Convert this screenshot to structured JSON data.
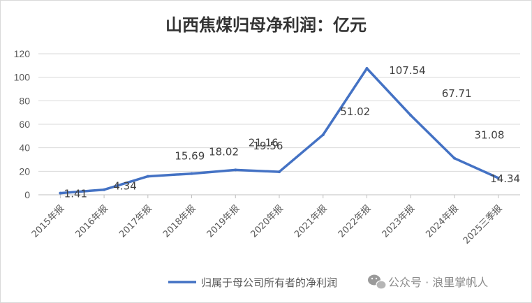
{
  "chart_data": {
    "type": "line",
    "title": "山西焦煤归母净利润：亿元",
    "categories": [
      "2015年报",
      "2016年报",
      "2017年报",
      "2018年报",
      "2019年报",
      "2020年报",
      "2021年报",
      "2022年报",
      "2023年报",
      "2024年报",
      "2025三季报"
    ],
    "series": [
      {
        "name": "归属于母公司所有者的净利润",
        "values": [
          1.41,
          4.34,
          15.69,
          18.02,
          21.16,
          19.56,
          51.02,
          107.54,
          67.71,
          31.08,
          14.34
        ],
        "color": "#4472C4"
      }
    ],
    "data_labels": [
      "1.41",
      "4.34",
      "15.69",
      "18.02",
      "21.16",
      "19.56",
      "51.02",
      "107.54",
      "67.71",
      "31.08",
      "14.34"
    ],
    "ylim": [
      0,
      120
    ],
    "yticks": [
      "0",
      "20",
      "40",
      "60",
      "80",
      "100",
      "120"
    ],
    "grid": true,
    "legend_position": "bottom"
  },
  "watermark": {
    "text": "公众号 · 浪里掌帆人",
    "icon": "wechat-icon"
  }
}
